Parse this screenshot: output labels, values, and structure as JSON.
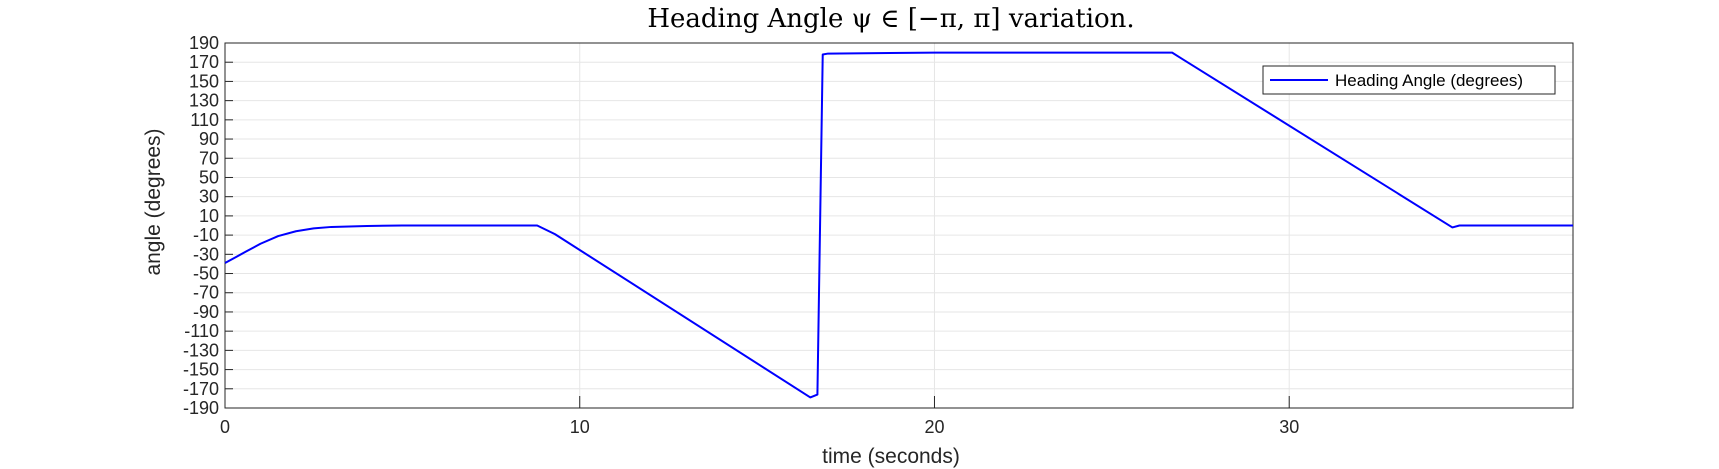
{
  "chart_data": {
    "type": "line",
    "title": "Heading Angle ψ ∈ [−π, π] variation.",
    "xlabel": "time (seconds)",
    "ylabel": "angle (degrees)",
    "xlim": [
      0,
      38
    ],
    "ylim": [
      -190,
      190
    ],
    "xticks": [
      0,
      10,
      20,
      30
    ],
    "yticks": [
      190,
      170,
      150,
      130,
      110,
      90,
      70,
      50,
      30,
      10,
      -10,
      -30,
      -50,
      -70,
      -90,
      -110,
      -130,
      -150,
      -170,
      -190
    ],
    "xtick_labels": [
      "0",
      "10",
      "20",
      "30"
    ],
    "ytick_labels": [
      "190",
      "170",
      "150",
      "130",
      "110",
      "90",
      "70",
      "50",
      "30",
      "10",
      "-10",
      "-30",
      "-50",
      "-70",
      "-90",
      "-110",
      "-130",
      "-150",
      "-170",
      "-190"
    ],
    "grid": true,
    "legend_position": "top-right",
    "series": [
      {
        "name": "Heading Angle (degrees)",
        "color": "#0000ff",
        "x": [
          0,
          0.3,
          0.6,
          1.0,
          1.5,
          2.0,
          2.5,
          3.0,
          4.0,
          5.0,
          6.0,
          7.0,
          8.0,
          8.8,
          9.3,
          16.5,
          16.7,
          16.8,
          16.85,
          17.0,
          20.0,
          26.7,
          27.0,
          34.6,
          34.8,
          38.0
        ],
        "y": [
          -39,
          -33,
          -27,
          -19,
          -11,
          -6,
          -3,
          -1.5,
          -0.5,
          0,
          0,
          0,
          0,
          0,
          -9,
          -179,
          -176,
          60,
          178,
          179,
          180,
          180,
          173,
          -2,
          0,
          0
        ]
      }
    ]
  }
}
